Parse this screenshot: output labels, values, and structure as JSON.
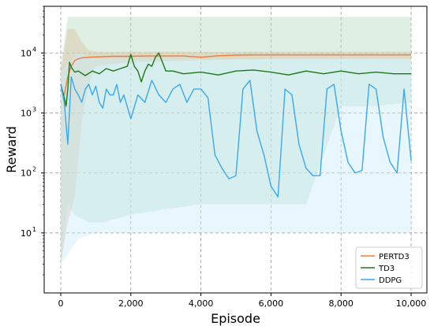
{
  "chart_data": {
    "type": "line",
    "title": "",
    "xlabel": "Episode",
    "ylabel": "Reward",
    "xlim": [
      0,
      10000
    ],
    "ylim": [
      1,
      60000
    ],
    "y_scale": "log",
    "grid": true,
    "legend_position": "bottom-right",
    "x_ticks": [
      0,
      2000,
      4000,
      6000,
      8000,
      10000
    ],
    "x_tick_labels": [
      "0",
      "2,000",
      "4,000",
      "6,000",
      "8,000",
      "10,000"
    ],
    "y_ticks": [
      10,
      100,
      1000,
      10000
    ],
    "y_tick_labels": [
      "10",
      "10",
      "10",
      "10"
    ],
    "y_tick_exponents": [
      "1",
      "2",
      "3",
      "4"
    ],
    "series": [
      {
        "name": "PERTD3",
        "color": "#f07b3f",
        "band_color": "#f5b08a",
        "x": [
          0,
          100,
          200,
          300,
          400,
          500,
          600,
          700,
          800,
          1000,
          1200,
          1500,
          2000,
          2500,
          3000,
          3500,
          4000,
          4500,
          5000,
          5500,
          6000,
          7000,
          8000,
          9000,
          10000
        ],
        "y": [
          2500,
          2000,
          4000,
          6000,
          7500,
          8000,
          8300,
          8400,
          8500,
          8600,
          8700,
          8800,
          8800,
          8900,
          8900,
          8900,
          8500,
          9000,
          9200,
          9300,
          9300,
          9300,
          9300,
          9300,
          9300
        ],
        "band_lower_x": [
          0,
          200,
          400,
          600,
          800,
          1000,
          2000,
          4000,
          6000,
          8000,
          10000
        ],
        "band_lower_y": [
          3,
          15,
          40,
          700,
          3000,
          6000,
          7000,
          7500,
          8000,
          8000,
          8000
        ],
        "band_upper_x": [
          0,
          200,
          400,
          600,
          800,
          1000,
          2000,
          4000,
          6000,
          8000,
          10000
        ],
        "band_upper_y": [
          5000,
          25000,
          25000,
          15000,
          11000,
          10500,
          10500,
          10500,
          10500,
          10500,
          10500
        ]
      },
      {
        "name": "TD3",
        "color": "#1a7a1a",
        "band_color": "#b8dcc0",
        "x": [
          0,
          100,
          150,
          200,
          250,
          300,
          400,
          500,
          700,
          900,
          1100,
          1300,
          1500,
          1700,
          1900,
          2000,
          2100,
          2200,
          2300,
          2400,
          2500,
          2600,
          2700,
          2800,
          3000,
          3200,
          3500,
          4000,
          4500,
          5000,
          5500,
          6000,
          6500,
          7000,
          7500,
          8000,
          8500,
          9000,
          9500,
          10000
        ],
        "y": [
          3000,
          1800,
          1300,
          2500,
          7000,
          5800,
          4800,
          5000,
          4200,
          5000,
          4500,
          5500,
          5000,
          5500,
          6000,
          9500,
          6000,
          5000,
          3300,
          5000,
          6500,
          6000,
          8500,
          10000,
          5000,
          5000,
          4500,
          4800,
          4300,
          5000,
          5200,
          4800,
          4300,
          5000,
          4500,
          5000,
          4500,
          4800,
          4500,
          4500
        ],
        "band_lower_x": [
          0,
          200,
          400,
          800,
          1200,
          2000,
          3000,
          4000,
          5000,
          6000,
          7000,
          8000,
          9000,
          10000
        ],
        "band_lower_y": [
          3,
          30,
          20,
          15,
          15,
          20,
          25,
          30,
          30,
          30,
          30,
          1300,
          1300,
          1500
        ],
        "band_upper_x": [
          0,
          200,
          400,
          800,
          1200,
          2000,
          3000,
          4000,
          5000,
          6000,
          7000,
          8000,
          9000,
          10000
        ],
        "band_upper_y": [
          6000,
          40000,
          40000,
          40000,
          40000,
          40000,
          40000,
          40000,
          40000,
          40000,
          40000,
          40000,
          40000,
          40000
        ]
      },
      {
        "name": "DDPG",
        "color": "#3aa8f0",
        "band_color": "#cdeefa",
        "x": [
          0,
          100,
          200,
          300,
          400,
          500,
          600,
          700,
          800,
          900,
          1000,
          1100,
          1200,
          1300,
          1400,
          1500,
          1600,
          1700,
          1800,
          2000,
          2200,
          2400,
          2600,
          2800,
          3000,
          3200,
          3400,
          3600,
          3800,
          4000,
          4200,
          4400,
          4600,
          4800,
          5000,
          5200,
          5400,
          5600,
          5800,
          6000,
          6200,
          6400,
          6600,
          6800,
          7000,
          7200,
          7400,
          7600,
          7800,
          8000,
          8200,
          8400,
          8600,
          8800,
          9000,
          9200,
          9400,
          9600,
          9800,
          10000
        ],
        "y": [
          3000,
          1500,
          300,
          4000,
          2500,
          2000,
          1500,
          2500,
          3000,
          2000,
          2800,
          1500,
          1200,
          2500,
          2000,
          2000,
          3000,
          1500,
          2000,
          800,
          2000,
          1500,
          3500,
          2000,
          1500,
          2500,
          3000,
          1500,
          2500,
          2500,
          1800,
          200,
          120,
          80,
          90,
          2500,
          3500,
          500,
          200,
          60,
          40,
          2500,
          2000,
          300,
          120,
          90,
          90,
          2500,
          3000,
          500,
          150,
          100,
          110,
          3000,
          2500,
          400,
          150,
          100,
          2500,
          160
        ],
        "band_lower_x": [
          0,
          500,
          1000,
          1500,
          2000,
          4000,
          6000,
          8000,
          10000
        ],
        "band_lower_y": [
          3,
          8,
          10,
          10,
          10,
          10,
          10,
          10,
          10
        ],
        "band_upper_x": [
          0,
          500,
          1000,
          1500,
          2000,
          4000,
          6000,
          8000,
          10000
        ],
        "band_upper_y": [
          5000,
          10000,
          8000,
          8000,
          8000,
          8000,
          8000,
          8000,
          8000
        ]
      }
    ]
  }
}
